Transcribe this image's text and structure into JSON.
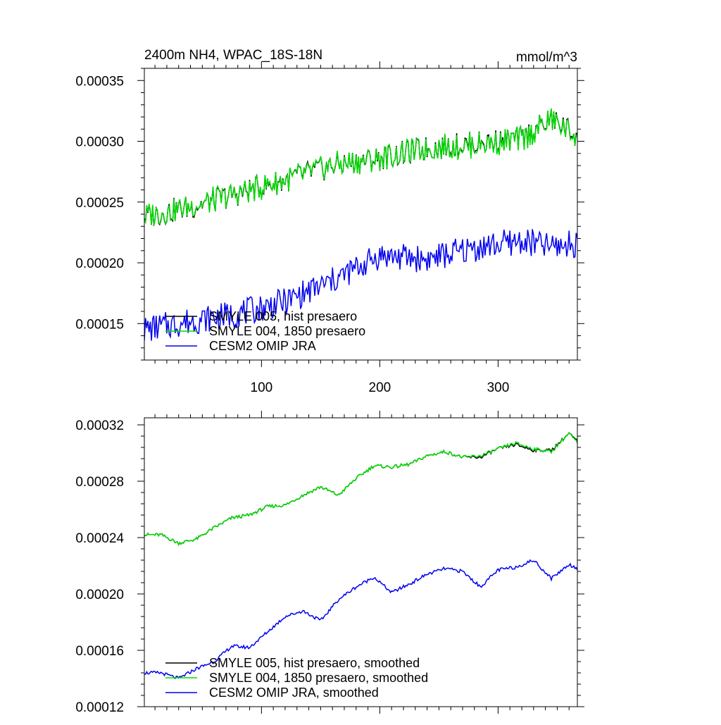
{
  "chart_data": [
    {
      "type": "line",
      "title": "2400m NH4, WPAC_18S-18N",
      "units": "mmol/m^3",
      "xlabel": "",
      "ylabel": "",
      "xlim": [
        1,
        367
      ],
      "ylim": [
        0.00012,
        0.00036
      ],
      "x_ticks": [
        100,
        200,
        300
      ],
      "x_tick_labels": [
        "100",
        "200",
        "300"
      ],
      "y_ticks": [
        0.00015,
        0.0002,
        0.00025,
        0.0003,
        0.00035
      ],
      "y_tick_labels": [
        "0.00015",
        "0.00020",
        "0.00025",
        "0.00030",
        "0.00035"
      ],
      "legend_position": "bottom-left",
      "series": [
        {
          "name": "SMYLE 005, hist presaero",
          "color": "#000000",
          "x": [
            1,
            40,
            80,
            120,
            160,
            200,
            240,
            280,
            320,
            345,
            367
          ],
          "values": [
            0.000238,
            0.000246,
            0.000257,
            0.000268,
            0.00028,
            0.000286,
            0.000294,
            0.000298,
            0.000302,
            0.000318,
            0.000305
          ]
        },
        {
          "name": "SMYLE 004, 1850 presaero",
          "color": "#00dd00",
          "x": [
            1,
            40,
            80,
            120,
            160,
            200,
            240,
            280,
            320,
            345,
            367
          ],
          "values": [
            0.000238,
            0.000246,
            0.000257,
            0.000268,
            0.00028,
            0.000286,
            0.000294,
            0.000297,
            0.000301,
            0.000318,
            0.000304
          ]
        },
        {
          "name": "CESM2 OMIP JRA",
          "color": "#0000ee",
          "x": [
            1,
            40,
            80,
            120,
            160,
            200,
            240,
            280,
            320,
            345,
            367
          ],
          "values": [
            0.000145,
            0.000152,
            0.000158,
            0.000168,
            0.000185,
            0.000206,
            0.000203,
            0.000212,
            0.000218,
            0.000213,
            0.000216
          ]
        }
      ]
    },
    {
      "type": "line",
      "title": "",
      "xlabel": "",
      "ylabel": "",
      "xlim": [
        1,
        367
      ],
      "ylim": [
        0.00012,
        0.000325
      ],
      "x_ticks": [
        100,
        200,
        300
      ],
      "y_ticks": [
        0.00012,
        0.00016,
        0.0002,
        0.00024,
        0.00028,
        0.00032
      ],
      "y_tick_labels": [
        "0.00012",
        "0.00016",
        "0.00020",
        "0.00024",
        "0.00028",
        "0.00032"
      ],
      "legend_position": "bottom-left",
      "series": [
        {
          "name": "SMYLE 005, hist presaero, smoothed",
          "color": "#000000",
          "x": [
            1,
            15,
            30,
            45,
            60,
            75,
            90,
            105,
            120,
            135,
            150,
            165,
            180,
            195,
            210,
            225,
            240,
            255,
            270,
            285,
            300,
            315,
            330,
            345,
            360,
            367
          ],
          "values": [
            0.000242,
            0.000242,
            0.000236,
            0.000239,
            0.000247,
            0.000254,
            0.000256,
            0.000262,
            0.000263,
            0.00027,
            0.000276,
            0.00027,
            0.000282,
            0.000291,
            0.00029,
            0.000292,
            0.000298,
            0.000301,
            0.000297,
            0.000297,
            0.000303,
            0.000306,
            0.000302,
            0.000302,
            0.000314,
            0.000308
          ]
        },
        {
          "name": "SMYLE 004, 1850 presaero, smoothed",
          "color": "#00dd00",
          "x": [
            1,
            15,
            30,
            45,
            60,
            75,
            90,
            105,
            120,
            135,
            150,
            165,
            180,
            195,
            210,
            225,
            240,
            255,
            270,
            285,
            300,
            315,
            330,
            345,
            360,
            367
          ],
          "values": [
            0.000242,
            0.000242,
            0.000236,
            0.000239,
            0.000247,
            0.000254,
            0.000256,
            0.000262,
            0.000263,
            0.00027,
            0.000276,
            0.00027,
            0.000282,
            0.000291,
            0.00029,
            0.000292,
            0.000298,
            0.000301,
            0.000297,
            0.000298,
            0.000303,
            0.000307,
            0.000303,
            0.000301,
            0.000314,
            0.000307
          ]
        },
        {
          "name": "CESM2 OMIP JRA, smoothed",
          "color": "#0000ee",
          "x": [
            1,
            15,
            30,
            45,
            60,
            75,
            90,
            105,
            120,
            135,
            150,
            165,
            180,
            195,
            210,
            225,
            240,
            255,
            270,
            285,
            300,
            315,
            330,
            345,
            360,
            367
          ],
          "values": [
            0.000144,
            0.000144,
            0.00014,
            0.000147,
            0.000152,
            0.000163,
            0.000162,
            0.000173,
            0.000184,
            0.000188,
            0.000181,
            0.000196,
            0.000205,
            0.000212,
            0.000201,
            0.000207,
            0.000214,
            0.000218,
            0.000216,
            0.000205,
            0.000217,
            0.000219,
            0.000224,
            0.000211,
            0.000221,
            0.000218
          ]
        }
      ]
    }
  ]
}
